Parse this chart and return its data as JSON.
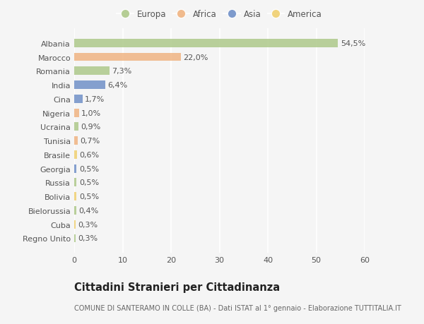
{
  "countries": [
    "Albania",
    "Marocco",
    "Romania",
    "India",
    "Cina",
    "Nigeria",
    "Ucraina",
    "Tunisia",
    "Brasile",
    "Georgia",
    "Russia",
    "Bolivia",
    "Bielorussia",
    "Cuba",
    "Regno Unito"
  ],
  "values": [
    54.5,
    22.0,
    7.3,
    6.4,
    1.7,
    1.0,
    0.9,
    0.7,
    0.6,
    0.5,
    0.5,
    0.5,
    0.4,
    0.3,
    0.3
  ],
  "labels": [
    "54,5%",
    "22,0%",
    "7,3%",
    "6,4%",
    "1,7%",
    "1,0%",
    "0,9%",
    "0,7%",
    "0,6%",
    "0,5%",
    "0,5%",
    "0,5%",
    "0,4%",
    "0,3%",
    "0,3%"
  ],
  "continents": [
    "Europa",
    "Africa",
    "Europa",
    "Asia",
    "Asia",
    "Africa",
    "Europa",
    "Africa",
    "America",
    "Asia",
    "Europa",
    "America",
    "Europa",
    "America",
    "Europa"
  ],
  "colors": {
    "Europa": "#aec98a",
    "Africa": "#f0b482",
    "Asia": "#7090c8",
    "America": "#f0d070"
  },
  "xlim": [
    0,
    60
  ],
  "xticks": [
    0,
    10,
    20,
    30,
    40,
    50,
    60
  ],
  "title": "Cittadini Stranieri per Cittadinanza",
  "subtitle": "COMUNE DI SANTERAMO IN COLLE (BA) - Dati ISTAT al 1° gennaio - Elaborazione TUTTITALIA.IT",
  "background_color": "#f5f5f5",
  "bar_height": 0.6,
  "label_fontsize": 8,
  "tick_fontsize": 8,
  "title_fontsize": 10.5,
  "subtitle_fontsize": 7,
  "legend_entries": [
    "Europa",
    "Africa",
    "Asia",
    "America"
  ]
}
